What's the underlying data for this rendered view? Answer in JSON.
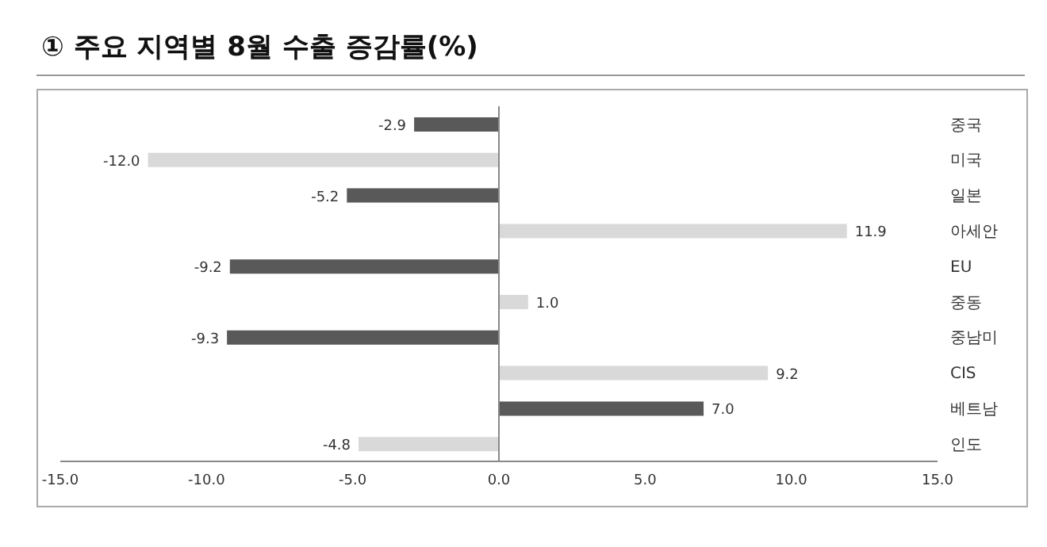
{
  "chart_data": {
    "type": "bar",
    "orientation": "horizontal",
    "title": "① 주요 지역별 8월 수출 증감률(%)",
    "categories": [
      "중국",
      "미국",
      "일본",
      "아세안",
      "EU",
      "중동",
      "중남미",
      "CIS",
      "베트남",
      "인도"
    ],
    "values": [
      -2.9,
      -12.0,
      -5.2,
      11.9,
      -9.2,
      1.0,
      -9.3,
      9.2,
      7.0,
      -4.8
    ],
    "colors": [
      "#595959",
      "#d9d9d9",
      "#595959",
      "#d9d9d9",
      "#595959",
      "#d9d9d9",
      "#595959",
      "#d9d9d9",
      "#595959",
      "#d9d9d9"
    ],
    "value_labels": [
      "-2.9",
      "-12.0",
      "-5.2",
      "11.9",
      "-9.2",
      "1.0",
      "-9.3",
      "9.2",
      "7.0",
      "-4.8"
    ],
    "xlim": [
      -15,
      15
    ],
    "xticks": [
      {
        "value": -15,
        "label": "-15.0"
      },
      {
        "value": -10,
        "label": "-10.0"
      },
      {
        "value": -5,
        "label": "-5.0"
      },
      {
        "value": 0,
        "label": "0.0"
      },
      {
        "value": 5,
        "label": "5.0"
      },
      {
        "value": 10,
        "label": "10.0"
      },
      {
        "value": 15,
        "label": "15.0"
      }
    ],
    "ref_lines": [
      {
        "axis": "x",
        "value": 0,
        "color": "#888888"
      }
    ],
    "legend": false
  }
}
